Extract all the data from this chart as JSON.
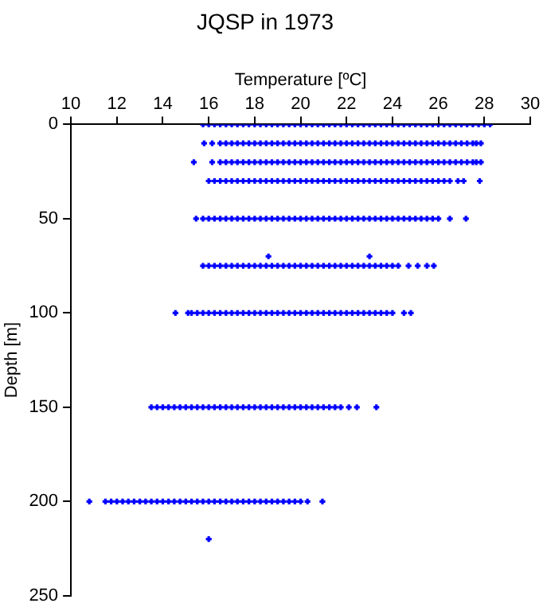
{
  "chart_data": {
    "type": "scatter",
    "title": "JQSP in 1973",
    "xlabel": "Temperature [ºC]",
    "ylabel": "Depth [m]",
    "xlim": [
      10,
      30
    ],
    "xticks": [
      10,
      12,
      14,
      16,
      18,
      20,
      22,
      24,
      26,
      28,
      30
    ],
    "ylim": [
      250,
      0
    ],
    "yticks": [
      0,
      50,
      100,
      150,
      200,
      250
    ],
    "grid": false,
    "legend": false,
    "marker": "cross",
    "series": [
      {
        "color": "#0000ff",
        "x": [
          15.75,
          16,
          16.25,
          16.5,
          16.75,
          17,
          17.25,
          17.5,
          17.75,
          18,
          18.25,
          18.5,
          18.75,
          19,
          19.25,
          19.5,
          19.75,
          20,
          20.25,
          20.5,
          20.75,
          21,
          21.25,
          21.5,
          21.75,
          22,
          22.25,
          22.5,
          22.75,
          23,
          23.25,
          23.5,
          23.75,
          24,
          24.25,
          24.5,
          24.75,
          25,
          25.25,
          25.5,
          25.75,
          26,
          26.25,
          26.5,
          26.75,
          27,
          27.25,
          27.5,
          27.75,
          28,
          28.25
        ],
        "values": [
          0,
          0,
          0,
          0,
          0,
          0,
          0,
          0,
          0,
          0,
          0,
          0,
          0,
          0,
          0,
          0,
          0,
          0,
          0,
          0,
          0,
          0,
          0,
          0,
          0,
          0,
          0,
          0,
          0,
          0,
          0,
          0,
          0,
          0,
          0,
          0,
          0,
          0,
          0,
          0,
          0,
          0,
          0,
          0,
          0,
          0,
          0,
          0,
          0,
          0,
          0
        ]
      },
      {
        "color": "#0000ff",
        "x": [
          15.8,
          16.15,
          16.5,
          16.75,
          17,
          17.25,
          17.5,
          17.75,
          18,
          18.25,
          18.5,
          18.75,
          19,
          19.25,
          19.5,
          19.75,
          20,
          20.25,
          20.5,
          20.75,
          21,
          21.25,
          21.5,
          21.75,
          22,
          22.25,
          22.5,
          22.75,
          23,
          23.25,
          23.5,
          23.75,
          24,
          24.25,
          24.5,
          24.75,
          25,
          25.25,
          25.5,
          25.75,
          26,
          26.25,
          26.5,
          26.75,
          27,
          27.25,
          27.5,
          27.65,
          27.85
        ],
        "values": [
          10,
          10,
          10,
          10,
          10,
          10,
          10,
          10,
          10,
          10,
          10,
          10,
          10,
          10,
          10,
          10,
          10,
          10,
          10,
          10,
          10,
          10,
          10,
          10,
          10,
          10,
          10,
          10,
          10,
          10,
          10,
          10,
          10,
          10,
          10,
          10,
          10,
          10,
          10,
          10,
          10,
          10,
          10,
          10,
          10,
          10,
          10,
          10,
          10
        ]
      },
      {
        "color": "#0000ff",
        "x": [
          15.35,
          16.15,
          16.5,
          16.75,
          17,
          17.25,
          17.5,
          17.75,
          18,
          18.25,
          18.5,
          18.75,
          19,
          19.25,
          19.5,
          19.75,
          20,
          20.25,
          20.5,
          20.75,
          21,
          21.25,
          21.5,
          21.75,
          22,
          22.25,
          22.5,
          22.75,
          23,
          23.25,
          23.5,
          23.75,
          24,
          24.25,
          24.5,
          24.75,
          25,
          25.25,
          25.5,
          25.75,
          26,
          26.25,
          26.5,
          26.75,
          27,
          27.25,
          27.5,
          27.65,
          27.85
        ],
        "values": [
          20,
          20,
          20,
          20,
          20,
          20,
          20,
          20,
          20,
          20,
          20,
          20,
          20,
          20,
          20,
          20,
          20,
          20,
          20,
          20,
          20,
          20,
          20,
          20,
          20,
          20,
          20,
          20,
          20,
          20,
          20,
          20,
          20,
          20,
          20,
          20,
          20,
          20,
          20,
          20,
          20,
          20,
          20,
          20,
          20,
          20,
          20,
          20,
          20
        ]
      },
      {
        "color": "#0000ff",
        "x": [
          16,
          16.25,
          16.5,
          16.75,
          17,
          17.25,
          17.5,
          17.75,
          18,
          18.25,
          18.5,
          18.75,
          19,
          19.25,
          19.5,
          19.75,
          20,
          20.25,
          20.5,
          20.75,
          21,
          21.25,
          21.5,
          21.75,
          22,
          22.25,
          22.5,
          22.75,
          23,
          23.25,
          23.5,
          23.75,
          24,
          24.25,
          24.5,
          24.75,
          25,
          25.25,
          25.5,
          25.75,
          26,
          26.25,
          26.5,
          26.85,
          27.1,
          27.8
        ],
        "values": [
          30,
          30,
          30,
          30,
          30,
          30,
          30,
          30,
          30,
          30,
          30,
          30,
          30,
          30,
          30,
          30,
          30,
          30,
          30,
          30,
          30,
          30,
          30,
          30,
          30,
          30,
          30,
          30,
          30,
          30,
          30,
          30,
          30,
          30,
          30,
          30,
          30,
          30,
          30,
          30,
          30,
          30,
          30,
          30,
          30,
          30
        ]
      },
      {
        "color": "#0000ff",
        "x": [
          15.45,
          15.75,
          16,
          16.25,
          16.5,
          16.75,
          17,
          17.25,
          17.5,
          17.75,
          18,
          18.25,
          18.5,
          18.75,
          19,
          19.25,
          19.5,
          19.75,
          20,
          20.25,
          20.5,
          20.75,
          21,
          21.25,
          21.5,
          21.75,
          22,
          22.25,
          22.5,
          22.75,
          23,
          23.25,
          23.5,
          23.75,
          24,
          24.25,
          24.5,
          24.75,
          25,
          25.25,
          25.5,
          25.75,
          26,
          26.5,
          27.2
        ],
        "values": [
          50,
          50,
          50,
          50,
          50,
          50,
          50,
          50,
          50,
          50,
          50,
          50,
          50,
          50,
          50,
          50,
          50,
          50,
          50,
          50,
          50,
          50,
          50,
          50,
          50,
          50,
          50,
          50,
          50,
          50,
          50,
          50,
          50,
          50,
          50,
          50,
          50,
          50,
          50,
          50,
          50,
          50,
          50,
          50,
          50
        ]
      },
      {
        "color": "#0000ff",
        "x": [
          18.6,
          23
        ],
        "values": [
          70,
          70
        ]
      },
      {
        "color": "#0000ff",
        "x": [
          15.75,
          16,
          16.25,
          16.5,
          16.75,
          17,
          17.25,
          17.5,
          17.75,
          18,
          18.25,
          18.5,
          18.75,
          19,
          19.25,
          19.5,
          19.75,
          20,
          20.25,
          20.5,
          20.75,
          21,
          21.25,
          21.5,
          21.75,
          22,
          22.25,
          22.5,
          22.75,
          23,
          23.25,
          23.5,
          23.75,
          24,
          24.25,
          24.7,
          25.1,
          25.5,
          25.8
        ],
        "values": [
          75,
          75,
          75,
          75,
          75,
          75,
          75,
          75,
          75,
          75,
          75,
          75,
          75,
          75,
          75,
          75,
          75,
          75,
          75,
          75,
          75,
          75,
          75,
          75,
          75,
          75,
          75,
          75,
          75,
          75,
          75,
          75,
          75,
          75,
          75,
          75,
          75,
          75,
          75
        ]
      },
      {
        "color": "#0000ff",
        "x": [
          14.55,
          15.1,
          15.25,
          15.5,
          15.75,
          16,
          16.25,
          16.5,
          16.75,
          17,
          17.25,
          17.5,
          17.75,
          18,
          18.25,
          18.5,
          18.75,
          19,
          19.25,
          19.5,
          19.75,
          20,
          20.25,
          20.5,
          20.75,
          21,
          21.25,
          21.5,
          21.75,
          22,
          22.25,
          22.5,
          22.75,
          23,
          23.25,
          23.5,
          23.75,
          24,
          24.5,
          24.8
        ],
        "values": [
          100,
          100,
          100,
          100,
          100,
          100,
          100,
          100,
          100,
          100,
          100,
          100,
          100,
          100,
          100,
          100,
          100,
          100,
          100,
          100,
          100,
          100,
          100,
          100,
          100,
          100,
          100,
          100,
          100,
          100,
          100,
          100,
          100,
          100,
          100,
          100,
          100,
          100,
          100,
          100
        ]
      },
      {
        "color": "#0000ff",
        "x": [
          13.5,
          13.75,
          14,
          14.25,
          14.5,
          14.75,
          15,
          15.25,
          15.5,
          15.75,
          16,
          16.25,
          16.5,
          16.75,
          17,
          17.25,
          17.5,
          17.75,
          18,
          18.25,
          18.5,
          18.75,
          19,
          19.25,
          19.5,
          19.75,
          20,
          20.25,
          20.5,
          20.75,
          21,
          21.25,
          21.5,
          21.75,
          22.1,
          22.45,
          23.3
        ],
        "values": [
          150,
          150,
          150,
          150,
          150,
          150,
          150,
          150,
          150,
          150,
          150,
          150,
          150,
          150,
          150,
          150,
          150,
          150,
          150,
          150,
          150,
          150,
          150,
          150,
          150,
          150,
          150,
          150,
          150,
          150,
          150,
          150,
          150,
          150,
          150,
          150,
          150
        ]
      },
      {
        "color": "#0000ff",
        "x": [
          10.8,
          11.5,
          11.75,
          12,
          12.25,
          12.5,
          12.75,
          13,
          13.25,
          13.5,
          13.75,
          14,
          14.25,
          14.5,
          14.75,
          15,
          15.25,
          15.5,
          15.75,
          16,
          16.25,
          16.5,
          16.75,
          17,
          17.25,
          17.5,
          17.75,
          18,
          18.25,
          18.5,
          18.75,
          19,
          19.25,
          19.5,
          19.75,
          20,
          20.3,
          20.95
        ],
        "values": [
          200,
          200,
          200,
          200,
          200,
          200,
          200,
          200,
          200,
          200,
          200,
          200,
          200,
          200,
          200,
          200,
          200,
          200,
          200,
          200,
          200,
          200,
          200,
          200,
          200,
          200,
          200,
          200,
          200,
          200,
          200,
          200,
          200,
          200,
          200,
          200,
          200,
          200
        ]
      },
      {
        "color": "#0000ff",
        "x": [
          16
        ],
        "values": [
          220
        ]
      }
    ]
  }
}
